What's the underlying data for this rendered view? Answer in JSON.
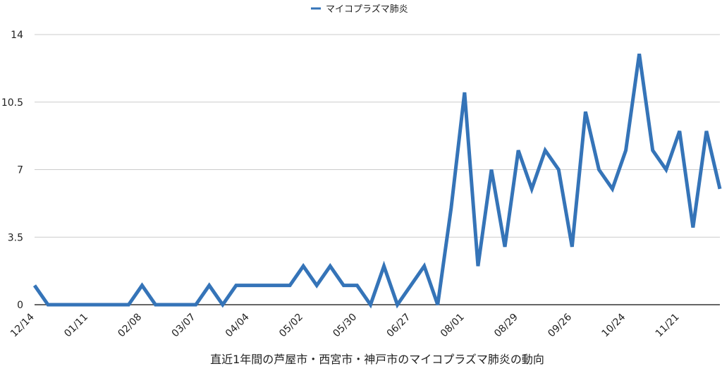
{
  "chart_data": {
    "type": "line",
    "title": "",
    "xlabel": "直近1年間の芦屋市・西宮市・神戸市のマイコプラズマ肺炎の動向",
    "ylabel": "",
    "ylim": [
      0,
      14
    ],
    "yticks": [
      "0",
      "3.5",
      "7",
      "10.5",
      "14"
    ],
    "ytick_values": [
      0,
      3.5,
      7,
      10.5,
      14
    ],
    "xtick_labels": [
      "12/14",
      "01/11",
      "02/08",
      "03/07",
      "04/04",
      "05/02",
      "05/30",
      "06/27",
      "08/01",
      "08/29",
      "09/26",
      "10/24",
      "11/21"
    ],
    "xtick_indices": [
      0,
      4,
      8,
      12,
      16,
      20,
      24,
      28,
      32,
      36,
      40,
      44,
      48
    ],
    "grid": true,
    "legend_position": "top",
    "series": [
      {
        "name": "マイコプラズマ肺炎",
        "color": "#3574b8",
        "values": [
          1,
          0,
          0,
          0,
          0,
          0,
          0,
          0,
          1,
          0,
          0,
          0,
          0,
          1,
          0,
          1,
          1,
          1,
          1,
          1,
          2,
          1,
          2,
          1,
          1,
          0,
          2,
          0,
          1,
          2,
          0,
          5,
          11,
          2,
          7,
          3,
          8,
          6,
          8,
          7,
          3,
          10,
          7,
          6,
          8,
          13,
          8,
          7,
          9,
          4,
          9,
          6
        ]
      }
    ]
  }
}
